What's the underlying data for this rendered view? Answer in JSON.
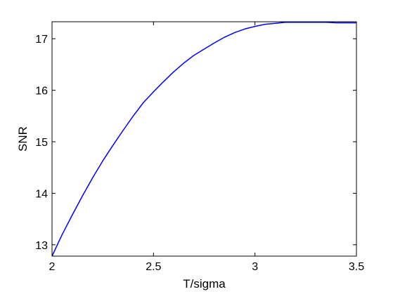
{
  "chart_data": {
    "type": "line",
    "title": "",
    "xlabel": "T/sigma",
    "ylabel": "SNR",
    "xlim": [
      2,
      3.5
    ],
    "ylim": [
      12.78,
      17.33
    ],
    "grid": false,
    "x_ticks": [
      2,
      2.5,
      3,
      3.5
    ],
    "x_tick_labels": [
      "2",
      "2.5",
      "3",
      "3.5"
    ],
    "y_ticks": [
      13,
      14,
      15,
      16,
      17
    ],
    "y_tick_labels": [
      "13",
      "14",
      "15",
      "16",
      "17"
    ],
    "series": [
      {
        "color": "#0000ff",
        "x": [
          2.0,
          2.05,
          2.1,
          2.15,
          2.2,
          2.25,
          2.3,
          2.35,
          2.4,
          2.45,
          2.5,
          2.55,
          2.6,
          2.65,
          2.7,
          2.75,
          2.8,
          2.85,
          2.9,
          2.95,
          3.0,
          3.05,
          3.1,
          3.15,
          3.2,
          3.25,
          3.3,
          3.35,
          3.4,
          3.45,
          3.5
        ],
        "y": [
          12.78,
          13.2,
          13.58,
          13.95,
          14.3,
          14.63,
          14.93,
          15.22,
          15.5,
          15.76,
          15.97,
          16.17,
          16.36,
          16.53,
          16.68,
          16.8,
          16.92,
          17.03,
          17.12,
          17.19,
          17.24,
          17.28,
          17.3,
          17.32,
          17.32,
          17.32,
          17.32,
          17.32,
          17.31,
          17.31,
          17.31
        ]
      }
    ]
  }
}
